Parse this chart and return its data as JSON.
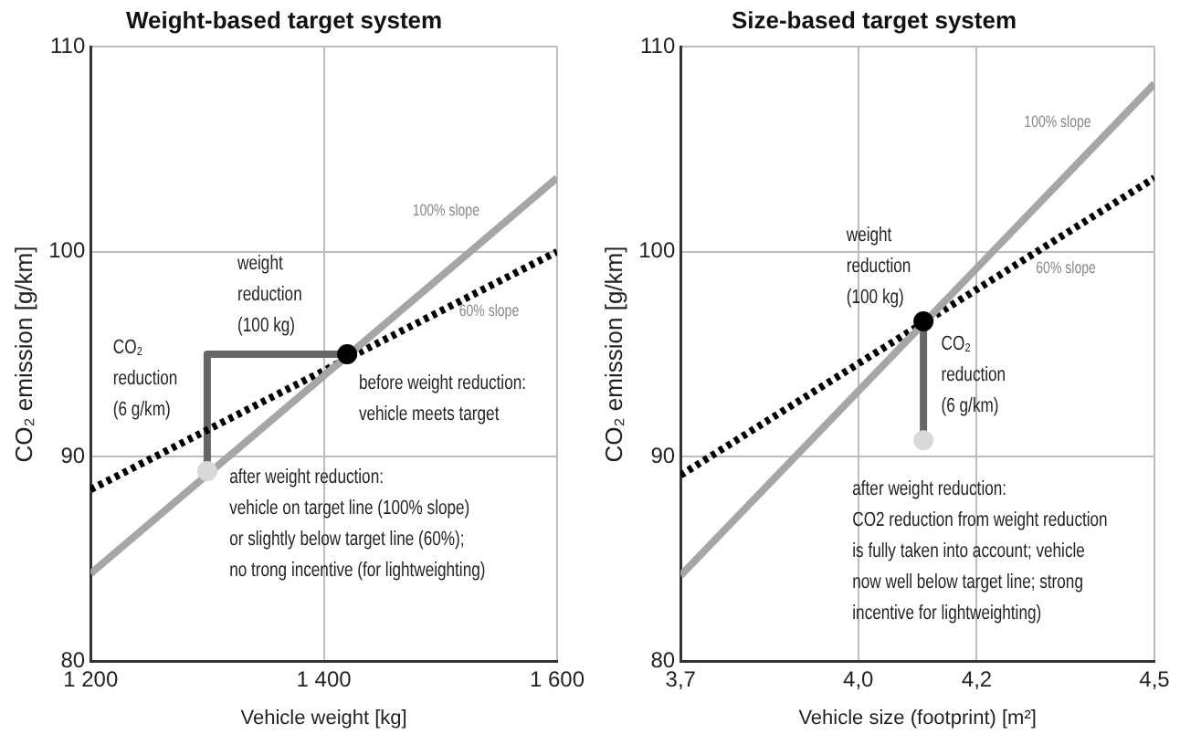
{
  "chart_data": [
    {
      "type": "line",
      "title": "Weight-based target system",
      "xlabel": "Vehicle weight [kg]",
      "ylabel": "CO₂ emission [g/km]",
      "xlim": [
        1200,
        1600
      ],
      "ylim": [
        80,
        110
      ],
      "xticks": [
        {
          "value": 1200,
          "label": "1 200"
        },
        {
          "value": 1400,
          "label": "1 400"
        },
        {
          "value": 1600,
          "label": "1 600"
        }
      ],
      "yticks": [
        80,
        90,
        100,
        110
      ],
      "grid": true,
      "legend": false,
      "series": [
        {
          "x": [
            1200,
            1600
          ],
          "values": [
            84.3,
            103.6
          ],
          "color": "#a6a6a6"
        },
        {
          "x": [
            1200,
            1600
          ],
          "values": [
            88.4,
            100.0
          ],
          "color": "#000000",
          "line_style": "dotted"
        },
        {
          "x": [
            1420,
            1300,
            1300
          ],
          "values": [
            95,
            95,
            89.7
          ],
          "color": "#666666"
        },
        {
          "type": "scatter",
          "x": [
            1420
          ],
          "values": [
            95
          ],
          "color": "#000000",
          "marker": "circle"
        },
        {
          "type": "scatter",
          "x": [
            1300
          ],
          "values": [
            89.3
          ],
          "color": "#d9d9d9",
          "marker": "circle"
        }
      ],
      "annotations": [
        "100% slope",
        "60% slope",
        "weight\nreduction\n(100 kg)",
        "CO₂\nreduction\n(6 g/km)",
        "before weight reduction:\nvehicle meets target",
        "after weight reduction:\nvehicle on target line (100% slope)\nor slightly below target line (60%);\nno trong incentive (for lightweighting)"
      ]
    },
    {
      "type": "line",
      "title": "Size-based target system",
      "xlabel": "Vehicle size (footprint) [m²]",
      "ylabel": "CO₂ emission [g/km]",
      "xlim": [
        3.7,
        4.5
      ],
      "ylim": [
        80,
        110
      ],
      "xticks": [
        {
          "value": 3.7,
          "label": "3,7"
        },
        {
          "value": 4.0,
          "label": "4,0"
        },
        {
          "value": 4.2,
          "label": "4,2"
        },
        {
          "value": 4.5,
          "label": "4,5"
        }
      ],
      "yticks": [
        80,
        90,
        100,
        110
      ],
      "grid": true,
      "legend": false,
      "series": [
        {
          "x": [
            3.7,
            4.5
          ],
          "values": [
            84.2,
            108.2
          ],
          "color": "#a6a6a6"
        },
        {
          "x": [
            3.7,
            4.5
          ],
          "values": [
            89.1,
            103.6
          ],
          "color": "#000000",
          "line_style": "dotted"
        },
        {
          "x": [
            4.11,
            4.11
          ],
          "values": [
            96.6,
            91.3
          ],
          "color": "#666666"
        },
        {
          "type": "scatter",
          "x": [
            4.11
          ],
          "values": [
            96.6
          ],
          "color": "#000000",
          "marker": "circle"
        },
        {
          "type": "scatter",
          "x": [
            4.11
          ],
          "values": [
            90.8
          ],
          "color": "#d9d9d9",
          "marker": "circle"
        }
      ],
      "annotations": [
        "100% slope",
        "60% slope",
        "weight\nreduction\n(100 kg)",
        "CO₂\nreduction\n(6 g/km)",
        "after weight reduction:\nCO2 reduction from weight reduction\nis fully taken into account; vehicle\nnow well below target line; strong\nincentive for lightweighting)"
      ]
    }
  ]
}
